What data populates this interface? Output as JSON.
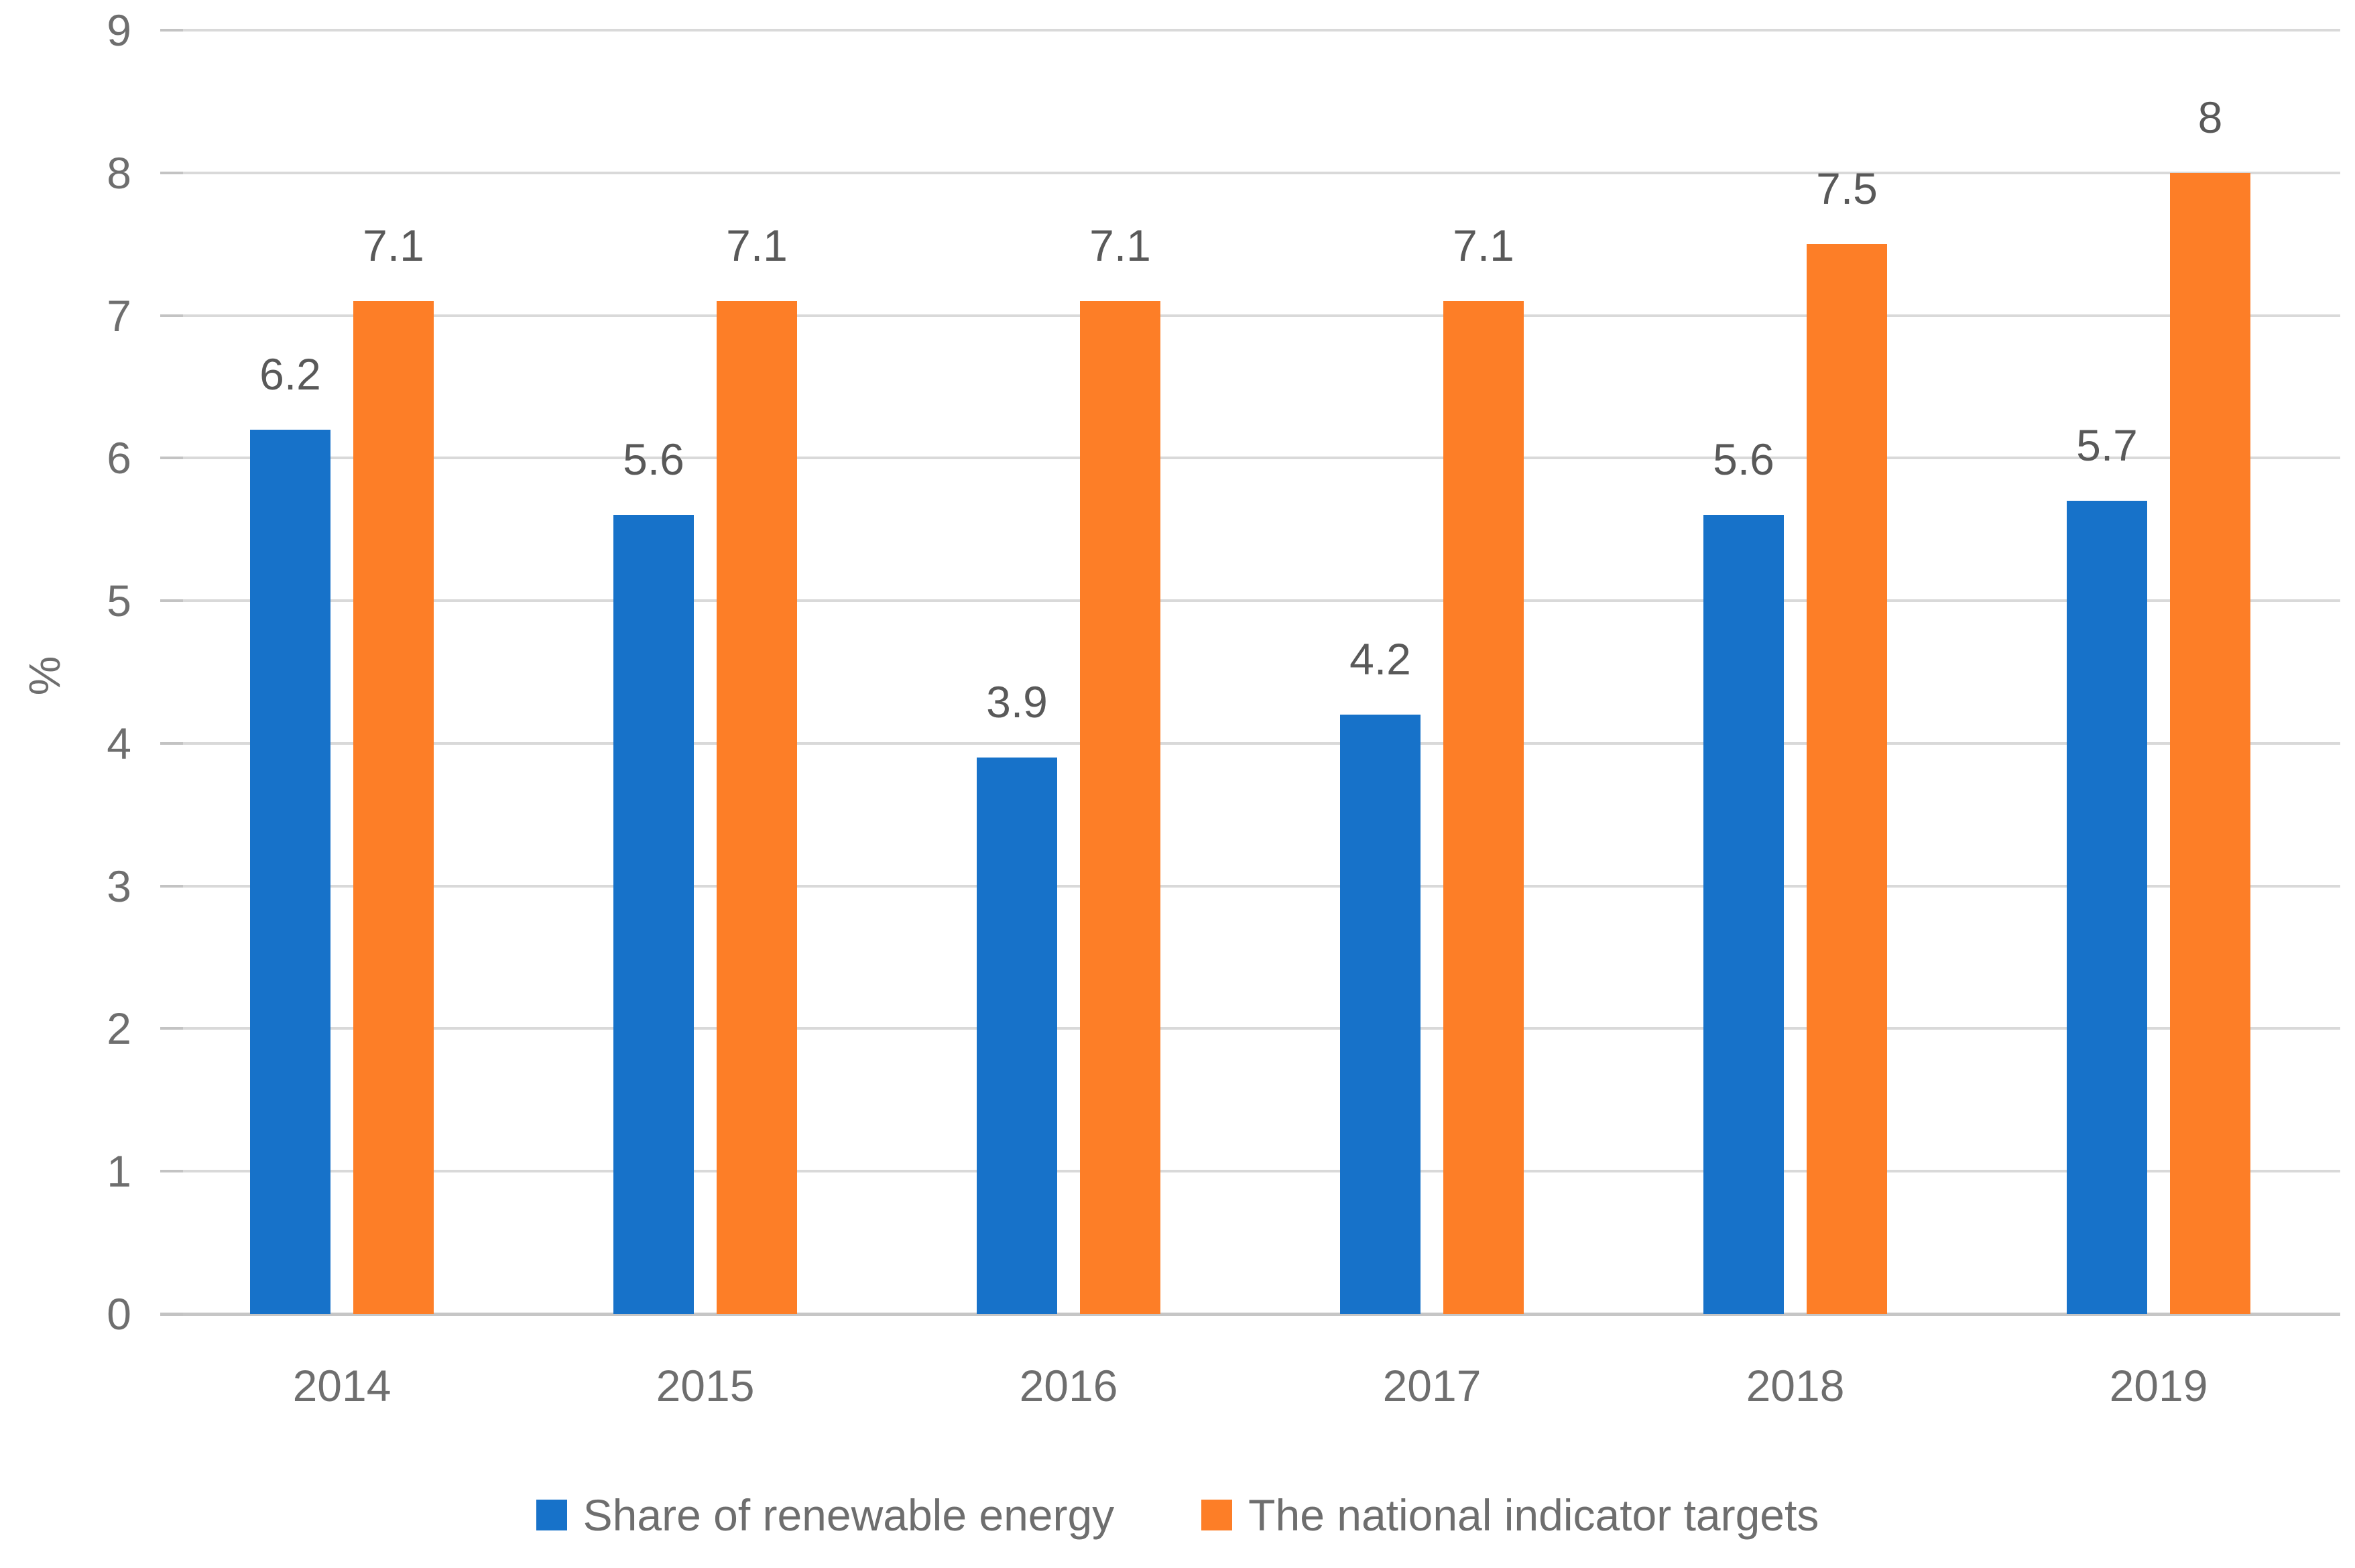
{
  "chart_data": {
    "type": "bar",
    "title": "",
    "categories": [
      "2014",
      "2015",
      "2016",
      "2017",
      "2018",
      "2019"
    ],
    "series": [
      {
        "name": "Share of renewable energy",
        "color": "#1772c9",
        "values": [
          6.2,
          5.6,
          3.9,
          4.2,
          5.6,
          5.7
        ],
        "labels": [
          "6.2",
          "5.6",
          "3.9",
          "4.2",
          "5.6",
          "5.7"
        ]
      },
      {
        "name": "The national indicator targets",
        "color": "#fd7e27",
        "values": [
          7.1,
          7.1,
          7.1,
          7.1,
          7.5,
          8
        ],
        "labels": [
          "7.1",
          "7.1",
          "7.1",
          "7.1",
          "7.5",
          "8"
        ]
      }
    ],
    "xlabel": "",
    "ylabel": "%",
    "ylim": [
      0,
      9
    ],
    "ytick_step": 1,
    "yticks": [
      "0",
      "1",
      "2",
      "3",
      "4",
      "5",
      "6",
      "7",
      "8",
      "9"
    ],
    "grid": true,
    "legend_position": "bottom",
    "colors": {
      "gridline": "#d9d9d9",
      "axis_line": "#c6c6c6",
      "tick_mark": "#c3c3c3",
      "tick_label_text": "#6e6e6e",
      "data_label_text": "#595959",
      "background": "#ffffff"
    }
  }
}
